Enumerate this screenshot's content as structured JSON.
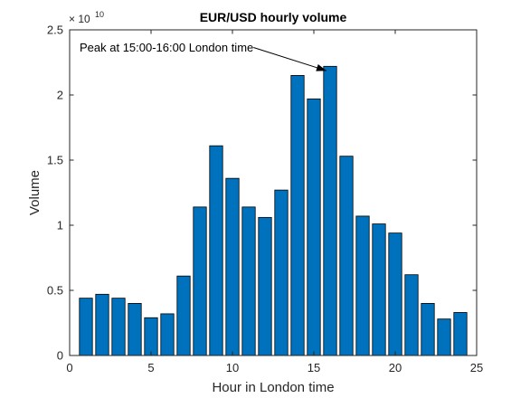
{
  "chart_data": {
    "type": "bar",
    "title": "EUR/USD hourly volume",
    "xlabel": "Hour in London time",
    "ylabel": "Volume",
    "x": [
      1,
      2,
      3,
      4,
      5,
      6,
      7,
      8,
      9,
      10,
      11,
      12,
      13,
      14,
      15,
      16,
      17,
      18,
      19,
      20,
      21,
      22,
      23,
      24
    ],
    "values": [
      4400000000.0,
      4700000000.0,
      4400000000.0,
      4000000000.0,
      2900000000.0,
      3200000000.0,
      6100000000.0,
      11400000000.0,
      16100000000.0,
      13600000000.0,
      11400000000.0,
      10600000000.0,
      12700000000.0,
      21500000000.0,
      19700000000.0,
      22200000000.0,
      15300000000.0,
      10700000000.0,
      10100000000.0,
      9400000000.0,
      6200000000.0,
      4000000000.0,
      2800000000.0,
      3300000000.0
    ],
    "xlim": [
      0,
      25
    ],
    "ylim": [
      0,
      25000000000.0
    ],
    "xticks": [
      0,
      5,
      10,
      15,
      20,
      25
    ],
    "xtick_labels": [
      "0",
      "5",
      "10",
      "15",
      "20",
      "25"
    ],
    "yticks": [
      0,
      5000000000.0,
      10000000000.0,
      15000000000.0,
      20000000000.0,
      25000000000.0
    ],
    "ytick_labels": [
      "0",
      "0.5",
      "1",
      "1.5",
      "2",
      "2.5"
    ],
    "y_exponent": {
      "base": "× 10",
      "power": "10"
    },
    "bar_color": "#0072BD",
    "bar_edge_color": "#000000",
    "grid": false,
    "annotation": {
      "text": "Peak at 15:00-16:00 London time",
      "target_x": 16,
      "target_y": 22000000000.0
    }
  }
}
